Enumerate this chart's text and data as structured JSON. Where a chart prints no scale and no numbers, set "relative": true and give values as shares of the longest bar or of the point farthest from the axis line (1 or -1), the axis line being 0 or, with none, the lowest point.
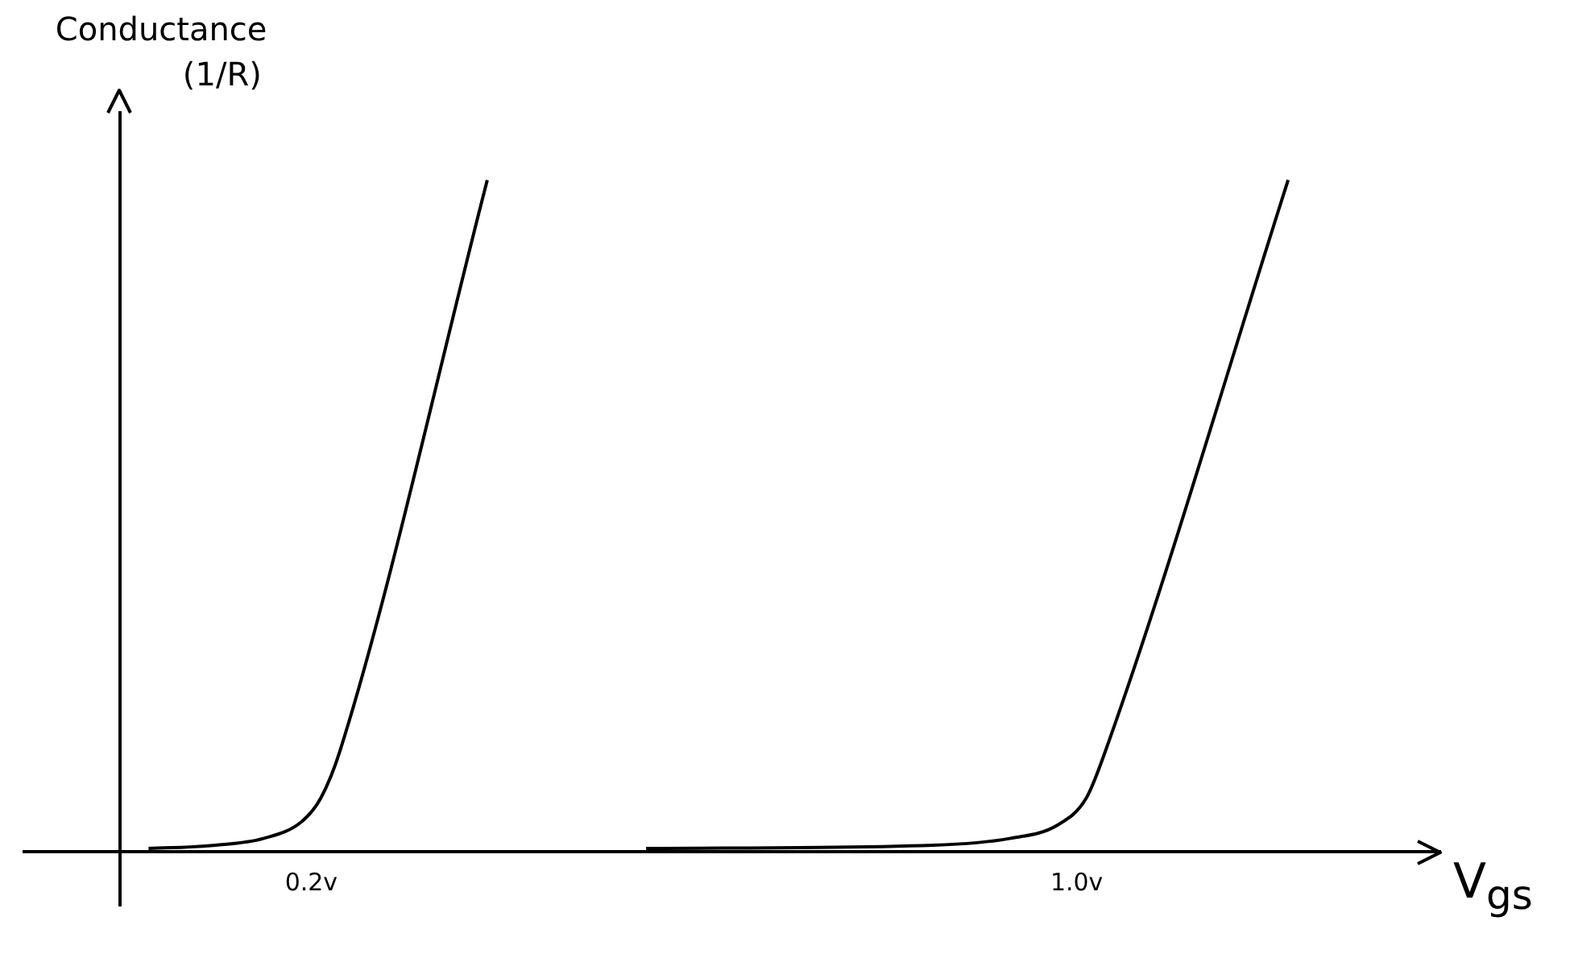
{
  "chart_data": {
    "type": "line",
    "relative": true,
    "xlabel": "V$_{gs}$",
    "ylabel": "Conductance (1/R)",
    "xlim": [
      -0.1,
      1.38
    ],
    "xticks": [
      {
        "value": 0.2,
        "label": "0.2v"
      },
      {
        "value": 1.0,
        "label": "1.0v"
      }
    ],
    "series": [
      {
        "color": "#000000",
        "x": [
          0.03,
          0.1,
          0.15,
          0.19,
          0.21,
          0.23,
          0.384
        ],
        "values": [
          0.005,
          0.01,
          0.02,
          0.045,
          0.08,
          0.15,
          1.0
        ]
      },
      {
        "color": "#000000",
        "x": [
          0.55,
          0.85,
          0.93,
          0.98,
          1.01,
          1.03,
          1.221
        ],
        "values": [
          0.005,
          0.01,
          0.02,
          0.04,
          0.08,
          0.15,
          1.0
        ]
      }
    ]
  }
}
